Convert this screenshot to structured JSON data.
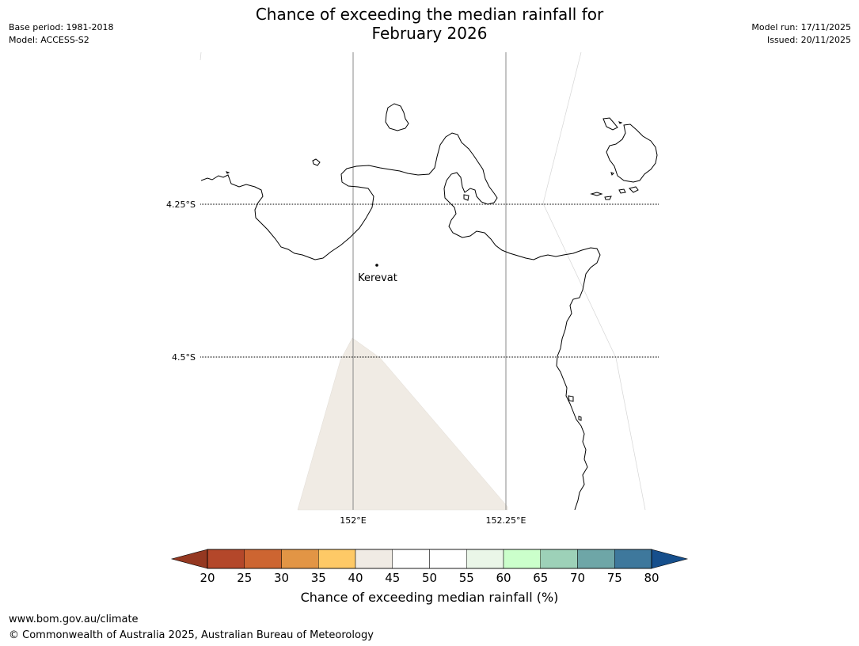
{
  "header": {
    "title_line1": "Chance of exceeding the median rainfall for",
    "title_line2": "February 2026",
    "base_period": "Base period: 1981-2018",
    "model": "Model: ACCESS-S2",
    "model_run": "Model run: 17/11/2025",
    "issued": "Issued: 20/11/2025"
  },
  "map": {
    "lat_labels": [
      "4.25°S",
      "4.5°S"
    ],
    "lon_labels": [
      "152°E",
      "152.25°E"
    ],
    "place": "Kerevat",
    "shaded_region_class": "40–45",
    "shaded_region_color": "#f0ebe4"
  },
  "colorbar": {
    "ticks": [
      "20",
      "25",
      "30",
      "35",
      "40",
      "45",
      "50",
      "55",
      "60",
      "65",
      "70",
      "75",
      "80"
    ],
    "colors": [
      "#b4472a",
      "#cd6531",
      "#e29545",
      "#fec966",
      "#f0ebe4",
      "#ffffff",
      "#ffffff",
      "#eaf6e8",
      "#cbffcb",
      "#9dd1b8",
      "#6ea6a7",
      "#3e789c"
    ],
    "under_color": "#953821",
    "over_color": "#164f8c",
    "label": "Chance of exceeding median rainfall (%)"
  },
  "footer": {
    "url": "www.bom.gov.au/climate",
    "copyright": "© Commonwealth of Australia 2025, Australian Bureau of Meteorology"
  }
}
